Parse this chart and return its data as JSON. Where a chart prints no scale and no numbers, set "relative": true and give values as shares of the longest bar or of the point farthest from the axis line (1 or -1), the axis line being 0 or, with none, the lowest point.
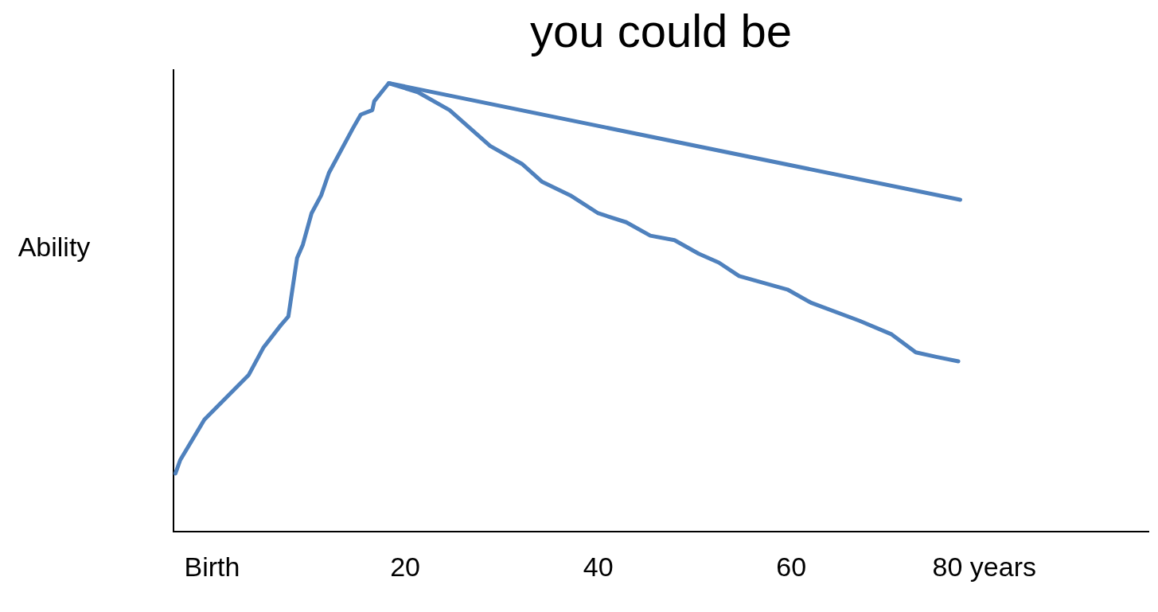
{
  "chart_data": {
    "type": "line",
    "title": "you could be",
    "ylabel": "Ability",
    "relative": true,
    "xlim": [
      -4,
      97
    ],
    "xticks": [
      {
        "value": 0,
        "label": "Birth"
      },
      20,
      40,
      60,
      {
        "value": 80,
        "label": "80 years"
      }
    ],
    "grid": false,
    "legend": false,
    "marker": "none",
    "line_style": "solid",
    "series": [
      {
        "color": "#4f81bd",
        "x": [
          -3.8,
          -3.3,
          -0.8,
          3.8,
          5.3,
          7.1,
          7.9,
          8.8,
          9.4,
          10.3,
          11.3,
          12.1,
          14.6,
          15.4,
          16.6,
          16.8,
          18.3,
          21.3,
          24.6,
          26.7,
          28.8,
          32.1,
          34.2,
          37.1,
          40,
          42.9,
          45.4,
          47.9,
          50.4,
          52.5,
          54.6,
          59.6,
          62.1,
          67.1,
          70.4,
          72.9,
          75,
          77.3
        ],
        "values": [
          0.13,
          0.16,
          0.25,
          0.35,
          0.41,
          0.46,
          0.48,
          0.61,
          0.64,
          0.71,
          0.75,
          0.8,
          0.9,
          0.93,
          0.94,
          0.96,
          1,
          0.98,
          0.94,
          0.9,
          0.86,
          0.82,
          0.78,
          0.75,
          0.71,
          0.69,
          0.66,
          0.65,
          0.62,
          0.6,
          0.57,
          0.54,
          0.51,
          0.47,
          0.44,
          0.4,
          0.39,
          0.38
        ]
      },
      {
        "color": "#4f81bd",
        "x": [
          18.3,
          77.5
        ],
        "values": [
          1,
          0.74
        ]
      }
    ]
  }
}
